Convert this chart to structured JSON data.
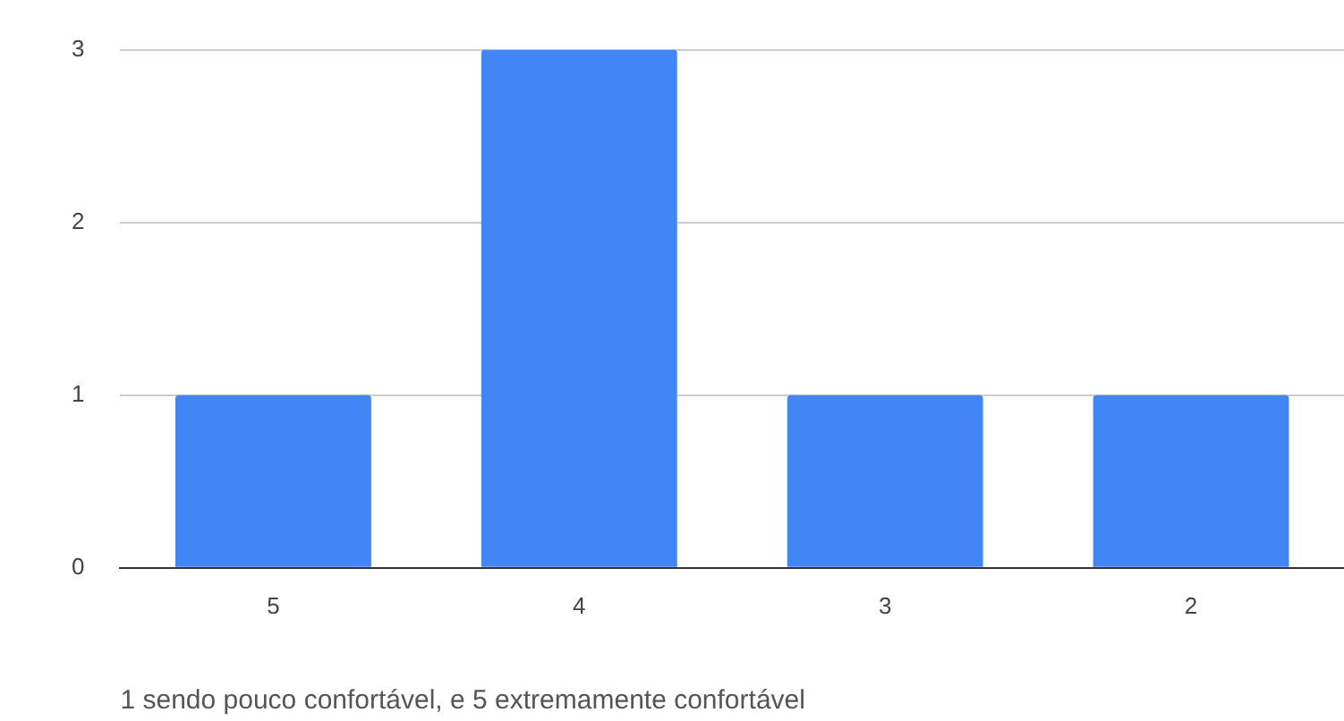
{
  "chart_data": {
    "type": "bar",
    "xlabel": "1 sendo pouco confortável, e 5 extremamente confortável",
    "categories": [
      "5",
      "4",
      "3",
      "2"
    ],
    "values": [
      1,
      3,
      1,
      1
    ],
    "color": "#4285f4",
    "ylim": [
      0,
      3
    ],
    "yticks": [
      0,
      1,
      2,
      3
    ],
    "grid": "y",
    "legend": false
  }
}
